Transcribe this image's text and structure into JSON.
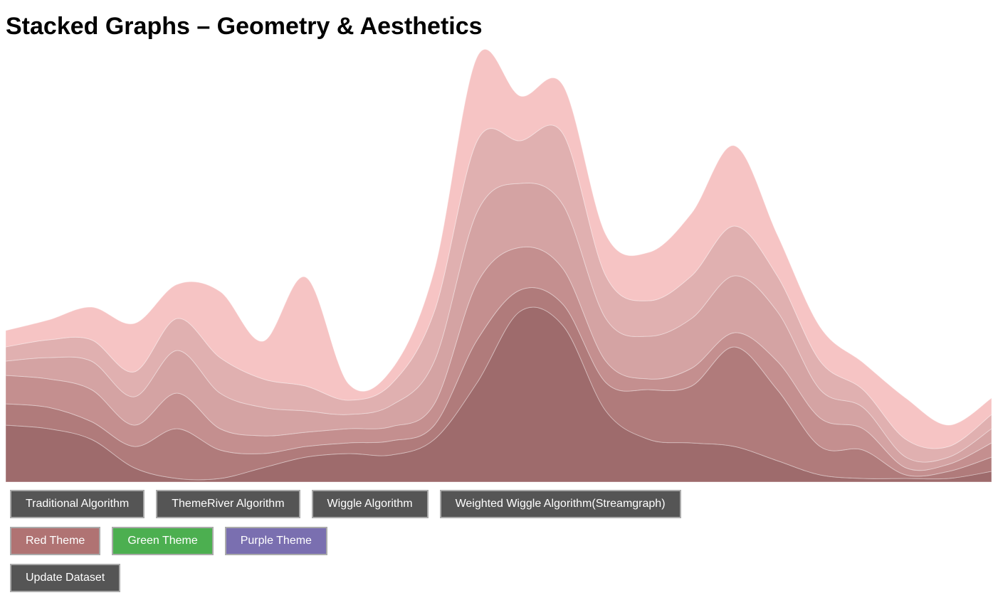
{
  "chart_data": {
    "type": "stacked-area",
    "title": "Stacked Graphs – Geometry & Aesthetics",
    "ylim": [
      0,
      600
    ],
    "series": [
      {
        "color": "#9e6b6c",
        "values": [
          80,
          75,
          60,
          20,
          5,
          5,
          20,
          35,
          40,
          38,
          60,
          140,
          240,
          220,
          100,
          60,
          55,
          50,
          30,
          10,
          5,
          5,
          5,
          15
        ]
      },
      {
        "color": "#b07b7b",
        "values": [
          30,
          30,
          25,
          30,
          70,
          40,
          20,
          15,
          15,
          20,
          20,
          60,
          30,
          30,
          40,
          70,
          80,
          140,
          100,
          40,
          40,
          5,
          10,
          20
        ]
      },
      {
        "color": "#c48f8f",
        "values": [
          40,
          40,
          45,
          30,
          50,
          30,
          25,
          20,
          20,
          20,
          30,
          80,
          60,
          50,
          30,
          15,
          25,
          20,
          40,
          40,
          30,
          10,
          10,
          20
        ]
      },
      {
        "color": "#d4a3a3",
        "values": [
          20,
          30,
          40,
          40,
          60,
          50,
          40,
          30,
          20,
          30,
          60,
          100,
          90,
          90,
          60,
          60,
          70,
          80,
          70,
          40,
          30,
          15,
          10,
          20
        ]
      },
      {
        "color": "#e0b0b0",
        "values": [
          20,
          25,
          30,
          35,
          45,
          50,
          40,
          35,
          20,
          30,
          70,
          100,
          60,
          100,
          60,
          50,
          60,
          70,
          50,
          40,
          25,
          25,
          15,
          20
        ]
      },
      {
        "color": "#f6c4c4",
        "values": [
          23,
          28,
          46,
          68,
          48,
          93,
          53,
          153,
          23,
          20,
          58,
          118,
          63,
          68,
          58,
          68,
          88,
          113,
          58,
          48,
          38,
          58,
          30,
          23
        ]
      }
    ]
  },
  "buttons": {
    "algorithms": [
      "Traditional Algorithm",
      "ThemeRiver Algorithm",
      "Wiggle Algorithm",
      "Weighted Wiggle Algorithm(Streamgraph)"
    ],
    "themes": [
      "Red Theme",
      "Green Theme",
      "Purple Theme"
    ],
    "dataset": [
      "Update Dataset"
    ]
  }
}
